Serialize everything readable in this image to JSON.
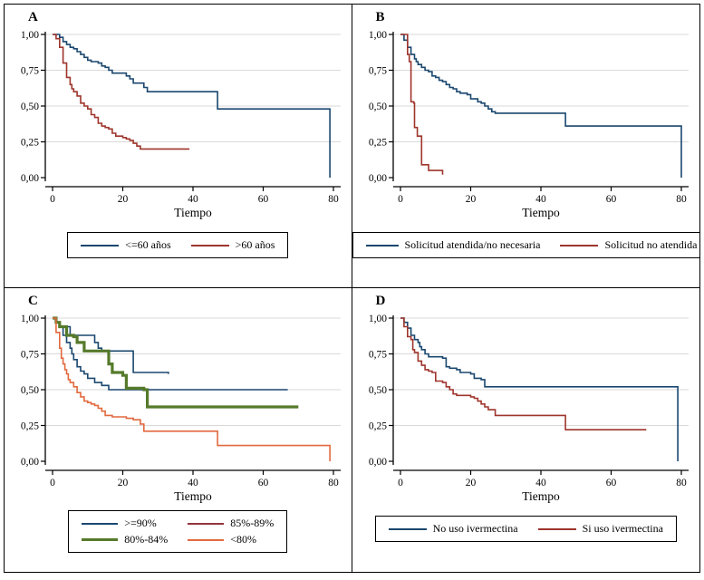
{
  "figure": {
    "background": "#ffffff",
    "border_color": "#000000",
    "grid_color": "#d9d9d9",
    "axis_color": "#000000"
  },
  "palette": {
    "navy": "#1a476f",
    "dark_red": "#9e352c",
    "forest_green": "#557a2b",
    "orange": "#e2693e",
    "legend_maroon": "#90353b"
  },
  "chart_data": [
    {
      "panel": "A",
      "type": "line",
      "step": true,
      "xlabel": "Tiempo",
      "xlim": [
        0,
        80
      ],
      "ylim": [
        0,
        1
      ],
      "x_ticks": [
        "0",
        "20",
        "40",
        "60",
        "80"
      ],
      "x_tick_values": [
        0,
        20,
        40,
        60,
        80
      ],
      "y_tick_labels": [
        "0,00",
        "0,25",
        "0,50",
        "0,75",
        "1,00"
      ],
      "y_tick_values": [
        0,
        0.25,
        0.5,
        0.75,
        1.0
      ],
      "grid": "horizontal",
      "legend_position": "bottom",
      "legend_columns": 2,
      "series": [
        {
          "name": "<=60 años",
          "color": "#1a476f",
          "line_width": 1.6,
          "points": [
            [
              0,
              1
            ],
            [
              2,
              0.98
            ],
            [
              3,
              0.95
            ],
            [
              4,
              0.93
            ],
            [
              5,
              0.91
            ],
            [
              6,
              0.9
            ],
            [
              7,
              0.88
            ],
            [
              8,
              0.86
            ],
            [
              9,
              0.84
            ],
            [
              10,
              0.82
            ],
            [
              11,
              0.81
            ],
            [
              13,
              0.8
            ],
            [
              14,
              0.78
            ],
            [
              15,
              0.77
            ],
            [
              16,
              0.75
            ],
            [
              17,
              0.73
            ],
            [
              21,
              0.71
            ],
            [
              22,
              0.69
            ],
            [
              23,
              0.66
            ],
            [
              26,
              0.63
            ],
            [
              27,
              0.6
            ],
            [
              47,
              0.48
            ],
            [
              79,
              0.48
            ],
            [
              79,
              0
            ]
          ]
        },
        {
          "name": ">60 años",
          "color": "#9e352c",
          "line_width": 1.6,
          "points": [
            [
              0,
              1
            ],
            [
              1,
              0.97
            ],
            [
              2,
              0.91
            ],
            [
              3,
              0.8
            ],
            [
              4,
              0.7
            ],
            [
              5,
              0.65
            ],
            [
              5.5,
              0.62
            ],
            [
              6,
              0.6
            ],
            [
              7,
              0.57
            ],
            [
              8,
              0.52
            ],
            [
              9,
              0.5
            ],
            [
              10,
              0.48
            ],
            [
              11,
              0.44
            ],
            [
              12,
              0.42
            ],
            [
              13,
              0.38
            ],
            [
              14,
              0.36
            ],
            [
              15,
              0.35
            ],
            [
              16,
              0.34
            ],
            [
              17,
              0.31
            ],
            [
              18,
              0.29
            ],
            [
              20,
              0.28
            ],
            [
              21,
              0.27
            ],
            [
              22,
              0.26
            ],
            [
              23,
              0.24
            ],
            [
              24,
              0.22
            ],
            [
              25,
              0.2
            ],
            [
              39,
              0.2
            ]
          ]
        }
      ]
    },
    {
      "panel": "B",
      "type": "line",
      "step": true,
      "xlabel": "Tiempo",
      "xlim": [
        0,
        80
      ],
      "ylim": [
        0,
        1
      ],
      "x_ticks": [
        "0",
        "20",
        "40",
        "60",
        "80"
      ],
      "x_tick_values": [
        0,
        20,
        40,
        60,
        80
      ],
      "y_tick_labels": [
        "0,00",
        "0,25",
        "0,50",
        "0,75",
        "1,00"
      ],
      "y_tick_values": [
        0,
        0.25,
        0.5,
        0.75,
        1.0
      ],
      "grid": "horizontal",
      "legend_position": "bottom",
      "legend_columns": 2,
      "series": [
        {
          "name": "Solicitud atendida/no necesaria",
          "color": "#1a476f",
          "line_width": 1.6,
          "points": [
            [
              0,
              1
            ],
            [
              1,
              0.96
            ],
            [
              2,
              0.91
            ],
            [
              3,
              0.86
            ],
            [
              4,
              0.83
            ],
            [
              4.5,
              0.81
            ],
            [
              5,
              0.79
            ],
            [
              6,
              0.77
            ],
            [
              7,
              0.75
            ],
            [
              8,
              0.74
            ],
            [
              9,
              0.71
            ],
            [
              10,
              0.7
            ],
            [
              11,
              0.68
            ],
            [
              12,
              0.67
            ],
            [
              13,
              0.65
            ],
            [
              14,
              0.63
            ],
            [
              15,
              0.62
            ],
            [
              16,
              0.6
            ],
            [
              17,
              0.59
            ],
            [
              19,
              0.58
            ],
            [
              20,
              0.55
            ],
            [
              22,
              0.53
            ],
            [
              23,
              0.52
            ],
            [
              24,
              0.5
            ],
            [
              25,
              0.48
            ],
            [
              26,
              0.46
            ],
            [
              27,
              0.45
            ],
            [
              47,
              0.36
            ],
            [
              80,
              0.36
            ],
            [
              80,
              0
            ]
          ]
        },
        {
          "name": "Solicitud no atendida",
          "color": "#9e352c",
          "line_width": 1.6,
          "points": [
            [
              0,
              1
            ],
            [
              2,
              0.86
            ],
            [
              2.5,
              0.81
            ],
            [
              3,
              0.53
            ],
            [
              3.8,
              0.52
            ],
            [
              4,
              0.35
            ],
            [
              4.8,
              0.29
            ],
            [
              6,
              0.09
            ],
            [
              8,
              0.05
            ],
            [
              12,
              0.02
            ]
          ]
        }
      ]
    },
    {
      "panel": "C",
      "type": "line",
      "step": true,
      "xlabel": "Tiempo",
      "xlim": [
        0,
        80
      ],
      "ylim": [
        0,
        1
      ],
      "x_ticks": [
        "0",
        "20",
        "40",
        "60",
        "80"
      ],
      "x_tick_values": [
        0,
        20,
        40,
        60,
        80
      ],
      "y_tick_labels": [
        "0,00",
        "0,25",
        "0,50",
        "0,75",
        "1,00"
      ],
      "y_tick_values": [
        0,
        0.25,
        0.5,
        0.75,
        1.0
      ],
      "grid": "horizontal",
      "legend_position": "bottom",
      "legend_columns": 2,
      "series": [
        {
          "name": ">=90%",
          "color": "#1a476f",
          "line_width": 1.6,
          "points": [
            [
              0,
              1
            ],
            [
              1,
              0.97
            ],
            [
              2,
              0.94
            ],
            [
              5,
              0.88
            ],
            [
              12,
              0.83
            ],
            [
              13,
              0.79
            ],
            [
              14,
              0.77
            ],
            [
              23,
              0.62
            ],
            [
              33,
              0.61
            ]
          ]
        },
        {
          "name": "85%-89%",
          "color": "#1a476f",
          "legend_color": "#90353b",
          "line_width": 1.6,
          "points": [
            [
              0,
              1
            ],
            [
              1,
              0.97
            ],
            [
              2,
              0.94
            ],
            [
              3,
              0.88
            ],
            [
              4,
              0.83
            ],
            [
              5,
              0.79
            ],
            [
              5.5,
              0.75
            ],
            [
              6,
              0.71
            ],
            [
              7,
              0.66
            ],
            [
              8,
              0.63
            ],
            [
              9,
              0.61
            ],
            [
              10,
              0.58
            ],
            [
              12,
              0.55
            ],
            [
              14,
              0.53
            ],
            [
              16,
              0.5
            ],
            [
              67,
              0.5
            ]
          ]
        },
        {
          "name": "80%-84%",
          "color": "#557a2b",
          "line_width": 3.2,
          "points": [
            [
              0,
              1
            ],
            [
              1,
              0.97
            ],
            [
              2,
              0.94
            ],
            [
              4,
              0.88
            ],
            [
              6,
              0.87
            ],
            [
              7,
              0.83
            ],
            [
              9,
              0.77
            ],
            [
              16,
              0.68
            ],
            [
              17,
              0.62
            ],
            [
              20,
              0.6
            ],
            [
              21,
              0.51
            ],
            [
              26,
              0.5
            ],
            [
              27,
              0.38
            ],
            [
              70,
              0.38
            ]
          ]
        },
        {
          "name": "<80%",
          "color": "#e2693e",
          "line_width": 1.6,
          "points": [
            [
              0,
              1
            ],
            [
              1,
              0.9
            ],
            [
              2,
              0.79
            ],
            [
              2.5,
              0.72
            ],
            [
              3,
              0.68
            ],
            [
              3.5,
              0.64
            ],
            [
              4,
              0.61
            ],
            [
              4.5,
              0.57
            ],
            [
              5,
              0.55
            ],
            [
              6,
              0.52
            ],
            [
              7,
              0.48
            ],
            [
              8,
              0.45
            ],
            [
              9,
              0.42
            ],
            [
              10,
              0.41
            ],
            [
              11,
              0.4
            ],
            [
              12,
              0.39
            ],
            [
              13,
              0.37
            ],
            [
              14,
              0.35
            ],
            [
              15,
              0.32
            ],
            [
              17,
              0.31
            ],
            [
              21,
              0.3
            ],
            [
              23,
              0.29
            ],
            [
              25,
              0.26
            ],
            [
              26,
              0.21
            ],
            [
              47,
              0.11
            ],
            [
              79,
              0.11
            ],
            [
              79,
              0
            ]
          ]
        }
      ]
    },
    {
      "panel": "D",
      "type": "line",
      "step": true,
      "xlabel": "Tiempo",
      "xlim": [
        0,
        80
      ],
      "ylim": [
        0,
        1
      ],
      "x_ticks": [
        "0",
        "20",
        "40",
        "60",
        "80"
      ],
      "x_tick_values": [
        0,
        20,
        40,
        60,
        80
      ],
      "y_tick_labels": [
        "0,00",
        "0,25",
        "0,50",
        "0,75",
        "1,00"
      ],
      "y_tick_values": [
        0,
        0.25,
        0.5,
        0.75,
        1.0
      ],
      "grid": "horizontal",
      "legend_position": "bottom",
      "legend_columns": 2,
      "series": [
        {
          "name": "No uso ivermectina",
          "color": "#1a476f",
          "line_width": 1.6,
          "points": [
            [
              0,
              1
            ],
            [
              1,
              0.97
            ],
            [
              2,
              0.93
            ],
            [
              3,
              0.88
            ],
            [
              4,
              0.85
            ],
            [
              5,
              0.83
            ],
            [
              5.5,
              0.8
            ],
            [
              6,
              0.78
            ],
            [
              7,
              0.75
            ],
            [
              8,
              0.73
            ],
            [
              12,
              0.72
            ],
            [
              13,
              0.66
            ],
            [
              14,
              0.65
            ],
            [
              16,
              0.64
            ],
            [
              17,
              0.62
            ],
            [
              20,
              0.61
            ],
            [
              21,
              0.58
            ],
            [
              23,
              0.57
            ],
            [
              24,
              0.52
            ],
            [
              79,
              0.52
            ],
            [
              79,
              0
            ]
          ]
        },
        {
          "name": "Si uso ivermectina",
          "color": "#9e352c",
          "line_width": 1.6,
          "points": [
            [
              0,
              1
            ],
            [
              1,
              0.94
            ],
            [
              2,
              0.87
            ],
            [
              3,
              0.85
            ],
            [
              3.5,
              0.78
            ],
            [
              4,
              0.76
            ],
            [
              5,
              0.7
            ],
            [
              6,
              0.67
            ],
            [
              7,
              0.64
            ],
            [
              8,
              0.63
            ],
            [
              9,
              0.62
            ],
            [
              10,
              0.56
            ],
            [
              12,
              0.55
            ],
            [
              13,
              0.52
            ],
            [
              14,
              0.5
            ],
            [
              15,
              0.47
            ],
            [
              16,
              0.46
            ],
            [
              20,
              0.45
            ],
            [
              21,
              0.44
            ],
            [
              22,
              0.42
            ],
            [
              23,
              0.4
            ],
            [
              24,
              0.38
            ],
            [
              25,
              0.36
            ],
            [
              27,
              0.32
            ],
            [
              47,
              0.22
            ],
            [
              70,
              0.22
            ]
          ]
        }
      ]
    }
  ]
}
